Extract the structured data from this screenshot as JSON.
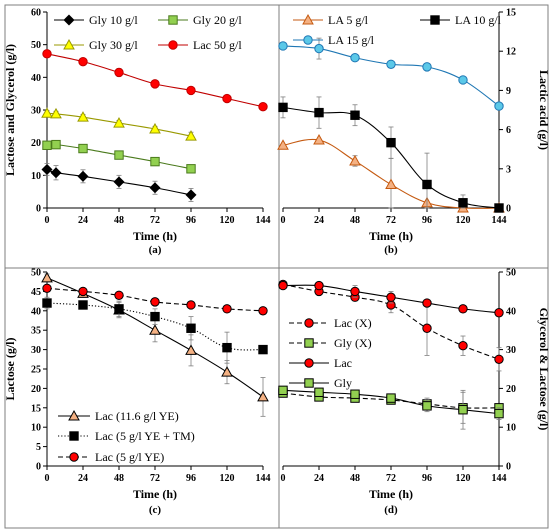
{
  "chart_data": [
    {
      "panel": "(a)",
      "type": "line",
      "xlabel": "Time (h)",
      "ylabel": "Lactose and Glycerol (g/l)",
      "xlim": [
        0,
        144
      ],
      "ylim": [
        0,
        60
      ],
      "xticks": [
        "0",
        "24",
        "48",
        "72",
        "96",
        "120",
        "144"
      ],
      "yticks": [
        "0",
        "10",
        "20",
        "30",
        "40",
        "50",
        "60"
      ],
      "grid": false,
      "legend_position": "top",
      "series": [
        {
          "name": "Gly 10 g/l",
          "color": "#000000",
          "marker": "diamond",
          "fill": "#000000",
          "line": "solid",
          "x": [
            0,
            6,
            24,
            48,
            72,
            96
          ],
          "y": [
            11.8,
            10.8,
            9.7,
            8.0,
            6.2,
            4.0
          ],
          "err": [
            1.8,
            2.2,
            2.0,
            2.0,
            2.0,
            2.0
          ]
        },
        {
          "name": "Gly 20 g/l",
          "color": "#4a7a1c",
          "marker": "square",
          "fill": "#92d050",
          "line": "solid",
          "x": [
            0,
            6,
            24,
            48,
            72,
            96
          ],
          "y": [
            19.2,
            19.4,
            18.2,
            16.2,
            14.2,
            12.0
          ],
          "err": [
            0.5,
            0.5,
            0.5,
            0.5,
            0.5,
            0.5
          ]
        },
        {
          "name": "Gly 30 g/l",
          "color": "#999900",
          "marker": "triangle",
          "fill": "#ffff00",
          "line": "solid",
          "x": [
            0,
            6,
            24,
            48,
            72,
            96
          ],
          "y": [
            29.0,
            28.8,
            27.8,
            26.0,
            24.2,
            22.0
          ],
          "err": [
            0.8,
            0.8,
            0.8,
            0.8,
            0.8,
            1.2
          ]
        },
        {
          "name": "Lac 50 g/l",
          "color": "#c00000",
          "marker": "circle",
          "fill": "#ff0000",
          "line": "solid",
          "x": [
            0,
            24,
            48,
            72,
            96,
            120,
            144
          ],
          "y": [
            47.2,
            44.8,
            41.5,
            38.0,
            36.0,
            33.5,
            31.0
          ],
          "err": [
            1.0,
            0.8,
            1.2,
            0.6,
            0.5,
            0.5,
            0.5
          ]
        }
      ]
    },
    {
      "panel": "(b)",
      "type": "line",
      "xlabel": "Time (h)",
      "ylabel": "Lactic acid (g/l)",
      "xlim": [
        0,
        144
      ],
      "ylim": [
        0,
        15
      ],
      "xticks": [
        "0",
        "24",
        "48",
        "72",
        "96",
        "120",
        "144"
      ],
      "yticks": [
        "0",
        "3",
        "6",
        "9",
        "12",
        "15"
      ],
      "grid": false,
      "legend_position": "top",
      "series": [
        {
          "name": "LA 5 g/l",
          "color": "#c55a11",
          "marker": "triangle",
          "fill": "#f4b183",
          "line": "solid",
          "x": [
            0,
            24,
            48,
            72,
            96,
            120,
            144
          ],
          "y": [
            4.8,
            5.2,
            3.6,
            1.8,
            0.4,
            0.0,
            0.0
          ],
          "err": [
            0.0,
            0.0,
            0.4,
            2.0,
            0.0,
            0.0,
            0.0
          ]
        },
        {
          "name": "LA 10 g/l",
          "color": "#000000",
          "marker": "square",
          "fill": "#000000",
          "line": "solid",
          "x": [
            0,
            24,
            48,
            72,
            96,
            120,
            144
          ],
          "y": [
            7.7,
            7.3,
            7.1,
            5.0,
            1.8,
            0.4,
            0.0
          ],
          "err": [
            0.8,
            1.2,
            0.8,
            1.2,
            2.4,
            0.6,
            0.0
          ]
        },
        {
          "name": "LA 15 g/l",
          "color": "#1f77b4",
          "marker": "circle",
          "fill": "#5bc8e8",
          "line": "solid",
          "x": [
            0,
            24,
            48,
            72,
            96,
            120,
            144
          ],
          "y": [
            12.4,
            12.2,
            11.5,
            11.0,
            10.8,
            9.8,
            7.8
          ],
          "err": [
            0.2,
            0.8,
            0.2,
            0.2,
            0.2,
            0.2,
            0.2
          ]
        }
      ]
    },
    {
      "panel": "(c)",
      "type": "line",
      "xlabel": "Time (h)",
      "ylabel": "Lactose (g/l)",
      "xlim": [
        0,
        144
      ],
      "ylim": [
        0,
        50
      ],
      "xticks": [
        "0",
        "24",
        "48",
        "72",
        "96",
        "120",
        "144"
      ],
      "yticks": [
        "0",
        "5",
        "10",
        "15",
        "20",
        "25",
        "30",
        "35",
        "40",
        "45",
        "50"
      ],
      "grid": false,
      "legend_position": "bottom-right",
      "series": [
        {
          "name": "Lac (11.6 g/l YE)",
          "color": "#000000",
          "marker": "triangle",
          "fill": "#f4b183",
          "line": "solid",
          "x": [
            0,
            24,
            48,
            72,
            96,
            120,
            144
          ],
          "y": [
            48.5,
            44.5,
            40.2,
            35.0,
            29.8,
            24.2,
            17.8
          ],
          "err": [
            1.0,
            1.0,
            2.0,
            3.0,
            4.0,
            3.0,
            5.0
          ]
        },
        {
          "name": "Lac (5 g/l YE + TM)",
          "color": "#000000",
          "marker": "square",
          "fill": "#000000",
          "line": "dotted",
          "x": [
            0,
            24,
            48,
            72,
            96,
            120,
            144
          ],
          "y": [
            42.0,
            41.5,
            40.5,
            38.5,
            35.5,
            30.5,
            30.0
          ],
          "err": [
            1.5,
            1.0,
            2.0,
            2.0,
            3.0,
            4.0,
            0.0
          ]
        },
        {
          "name": "Lac (5 g/l YE)",
          "color": "#000000",
          "marker": "circle",
          "fill": "#ff0000",
          "line": "dashed",
          "x": [
            0,
            24,
            48,
            72,
            96,
            120,
            144
          ],
          "y": [
            45.8,
            45.0,
            44.0,
            42.3,
            41.5,
            40.5,
            40.0
          ],
          "err": [
            0.3,
            0.3,
            0.3,
            0.3,
            0.3,
            0.3,
            0.3
          ]
        }
      ]
    },
    {
      "panel": "(d)",
      "type": "line",
      "xlabel": "Time (h)",
      "ylabel": "Glycerol & Lactose (g/l)",
      "xlim": [
        0,
        144
      ],
      "ylim": [
        0,
        50
      ],
      "xticks": [
        "0",
        "24",
        "48",
        "72",
        "96",
        "120",
        "144"
      ],
      "yticks": [
        "0",
        "10",
        "20",
        "30",
        "40",
        "50"
      ],
      "grid": false,
      "legend_position": "center-left",
      "series": [
        {
          "name": "Lac (X)",
          "color": "#000000",
          "marker": "circle",
          "fill": "#ff0000",
          "line": "dashed",
          "x": [
            0,
            24,
            48,
            72,
            96,
            120,
            144
          ],
          "y": [
            46.8,
            45.0,
            43.5,
            41.5,
            35.5,
            31.0,
            27.5
          ],
          "err": [
            0.5,
            1.0,
            1.0,
            2.0,
            7.0,
            2.5,
            3.0
          ]
        },
        {
          "name": "Gly (X)",
          "color": "#000000",
          "marker": "square",
          "fill": "#92d050",
          "line": "dashed",
          "x": [
            0,
            24,
            48,
            72,
            96,
            120,
            144
          ],
          "y": [
            18.8,
            17.8,
            17.5,
            17.0,
            16.0,
            15.0,
            15.0
          ],
          "err": [
            1.0,
            1.0,
            1.0,
            1.0,
            1.5,
            4.0,
            1.0
          ]
        },
        {
          "name": "Lac",
          "color": "#000000",
          "marker": "circle",
          "fill": "#ff0000",
          "line": "solid",
          "x": [
            0,
            24,
            48,
            72,
            96,
            120,
            144
          ],
          "y": [
            46.5,
            46.5,
            45.0,
            43.5,
            42.0,
            40.5,
            39.5
          ],
          "err": [
            0.5,
            0.8,
            1.5,
            1.5,
            0.5,
            0.5,
            0.5
          ]
        },
        {
          "name": "Gly",
          "color": "#000000",
          "marker": "square",
          "fill": "#92d050",
          "line": "solid",
          "x": [
            0,
            24,
            48,
            72,
            96,
            120,
            144
          ],
          "y": [
            19.5,
            19.0,
            18.5,
            17.5,
            15.5,
            14.5,
            13.5
          ],
          "err": [
            1.0,
            1.0,
            1.0,
            1.0,
            1.5,
            5.0,
            1.5
          ]
        }
      ]
    }
  ]
}
